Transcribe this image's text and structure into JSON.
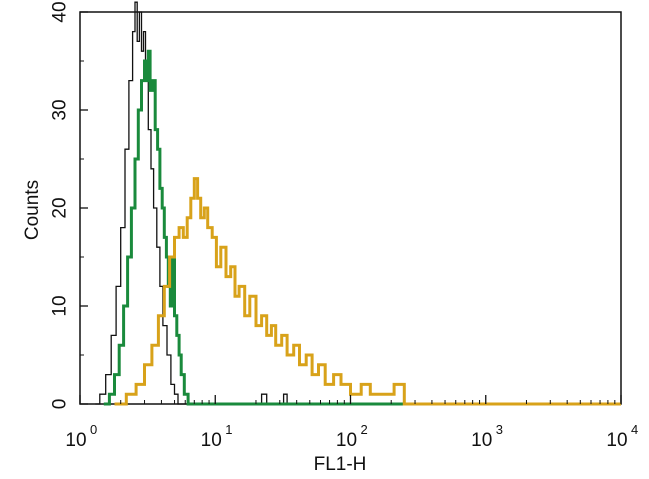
{
  "chart_data": {
    "type": "histogram",
    "xlabel": "FL1-H",
    "ylabel": "Counts",
    "x_scale": "log",
    "xlim": [
      1,
      10000
    ],
    "ylim": [
      0,
      40
    ],
    "x_ticks": [
      {
        "value": 1,
        "base": "10",
        "exp": "0"
      },
      {
        "value": 10,
        "base": "10",
        "exp": "1"
      },
      {
        "value": 100,
        "base": "10",
        "exp": "2"
      },
      {
        "value": 1000,
        "base": "10",
        "exp": "3"
      },
      {
        "value": 10000,
        "base": "10",
        "exp": "4"
      }
    ],
    "y_ticks": [
      "0",
      "10",
      "20",
      "30",
      "40"
    ],
    "grid": false,
    "legend": "none",
    "series": [
      {
        "color": "#111111",
        "points": [
          [
            1.3,
            0
          ],
          [
            1.4,
            1
          ],
          [
            1.55,
            3
          ],
          [
            1.7,
            7
          ],
          [
            1.85,
            12
          ],
          [
            2.0,
            18
          ],
          [
            2.15,
            26
          ],
          [
            2.3,
            33
          ],
          [
            2.45,
            38
          ],
          [
            2.55,
            41
          ],
          [
            2.65,
            37
          ],
          [
            2.75,
            40
          ],
          [
            2.85,
            36
          ],
          [
            2.95,
            38
          ],
          [
            3.05,
            33
          ],
          [
            3.2,
            28
          ],
          [
            3.35,
            24
          ],
          [
            3.5,
            20
          ],
          [
            3.7,
            16
          ],
          [
            3.9,
            12
          ],
          [
            4.1,
            8
          ],
          [
            4.4,
            5
          ],
          [
            4.7,
            2
          ],
          [
            5.0,
            1
          ],
          [
            5.3,
            0
          ],
          [
            6.0,
            0
          ],
          [
            20.0,
            0
          ],
          [
            22.0,
            1
          ],
          [
            24.0,
            0
          ],
          [
            30.0,
            0
          ],
          [
            32.0,
            1
          ],
          [
            34.0,
            0
          ],
          [
            100.0,
            0
          ]
        ]
      },
      {
        "color": "#1a8a3c",
        "points": [
          [
            1.5,
            0
          ],
          [
            1.65,
            1
          ],
          [
            1.8,
            3
          ],
          [
            1.95,
            6
          ],
          [
            2.1,
            10
          ],
          [
            2.25,
            15
          ],
          [
            2.4,
            20
          ],
          [
            2.55,
            25
          ],
          [
            2.7,
            30
          ],
          [
            2.85,
            33
          ],
          [
            3.0,
            35
          ],
          [
            3.1,
            33
          ],
          [
            3.2,
            36
          ],
          [
            3.3,
            32
          ],
          [
            3.45,
            33
          ],
          [
            3.6,
            28
          ],
          [
            3.75,
            26
          ],
          [
            3.9,
            22
          ],
          [
            4.05,
            20
          ],
          [
            4.2,
            17
          ],
          [
            4.35,
            15
          ],
          [
            4.5,
            12
          ],
          [
            4.65,
            10
          ],
          [
            4.8,
            15
          ],
          [
            5.0,
            9
          ],
          [
            5.2,
            7
          ],
          [
            5.4,
            5
          ],
          [
            5.6,
            3
          ],
          [
            5.9,
            1
          ],
          [
            6.3,
            0
          ],
          [
            150.0,
            0
          ],
          [
            250.0,
            0
          ]
        ]
      },
      {
        "color": "#d8a21a",
        "points": [
          [
            1.8,
            0
          ],
          [
            2.2,
            1
          ],
          [
            2.6,
            2
          ],
          [
            3.0,
            4
          ],
          [
            3.4,
            6
          ],
          [
            3.8,
            9
          ],
          [
            4.2,
            12
          ],
          [
            4.6,
            15
          ],
          [
            5.0,
            17
          ],
          [
            5.4,
            18
          ],
          [
            5.8,
            17
          ],
          [
            6.2,
            19
          ],
          [
            6.6,
            21
          ],
          [
            7.0,
            23
          ],
          [
            7.4,
            21
          ],
          [
            7.8,
            19
          ],
          [
            8.3,
            20
          ],
          [
            8.8,
            18
          ],
          [
            9.5,
            17
          ],
          [
            10.2,
            14
          ],
          [
            11.0,
            16
          ],
          [
            12.0,
            13
          ],
          [
            13.0,
            14
          ],
          [
            14.0,
            11
          ],
          [
            15.0,
            12
          ],
          [
            16.5,
            9
          ],
          [
            18.0,
            11
          ],
          [
            20.0,
            8
          ],
          [
            22.0,
            9
          ],
          [
            24.0,
            7
          ],
          [
            26.0,
            8
          ],
          [
            28.0,
            6
          ],
          [
            31.0,
            7
          ],
          [
            34.0,
            5
          ],
          [
            38.0,
            6
          ],
          [
            42.0,
            4
          ],
          [
            47.0,
            5
          ],
          [
            52.0,
            3
          ],
          [
            58.0,
            4
          ],
          [
            65.0,
            2
          ],
          [
            75.0,
            3
          ],
          [
            85.0,
            2
          ],
          [
            100.0,
            1
          ],
          [
            120.0,
            2
          ],
          [
            140.0,
            1
          ],
          [
            170.0,
            1
          ],
          [
            210.0,
            2
          ],
          [
            250.0,
            0
          ],
          [
            400.0,
            0
          ],
          [
            1000.0,
            0
          ],
          [
            10000.0,
            0
          ]
        ]
      }
    ]
  }
}
